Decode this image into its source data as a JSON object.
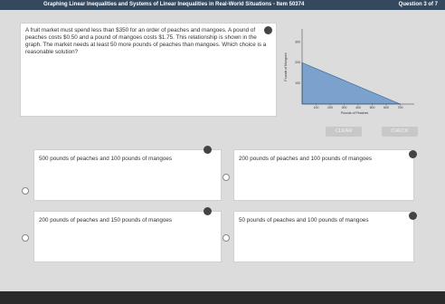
{
  "header": {
    "title": "Graphing Linear Inequalities and Systems of Linear Inequalities in Real-World Situations - Item 50374",
    "progress": "Question 3 of 7"
  },
  "question": {
    "text": "A fruit market must spend less than $350 for an order of peaches and mangoes. A pound of peaches costs $0.50 and a pound of mangoes costs $1.75. This relationship is shown in the graph. The market needs at least 50 more pounds of peaches than mangoes. Which choice is a reasonable solution?",
    "graph": {
      "x_label": "Pounds of Peaches",
      "y_label": "Pounds of Mangoes",
      "xlim": [
        0,
        800
      ],
      "ylim": [
        0,
        350
      ],
      "xticks": [
        100,
        200,
        300,
        400,
        500,
        600,
        700
      ],
      "yticks": [
        100,
        200,
        300
      ],
      "shaded_region": [
        [
          0,
          0
        ],
        [
          0,
          200
        ],
        [
          700,
          0
        ]
      ]
    }
  },
  "buttons": {
    "clear": "CLEAR",
    "check": "CHECK"
  },
  "choices": [
    "500 pounds of peaches and 100 pounds of mangoes",
    "200 pounds of peaches and 100 pounds of mangoes",
    "200 pounds of peaches and 150 pounds of mangoes",
    "50 pounds of peaches and 100 pounds of mangoes"
  ]
}
